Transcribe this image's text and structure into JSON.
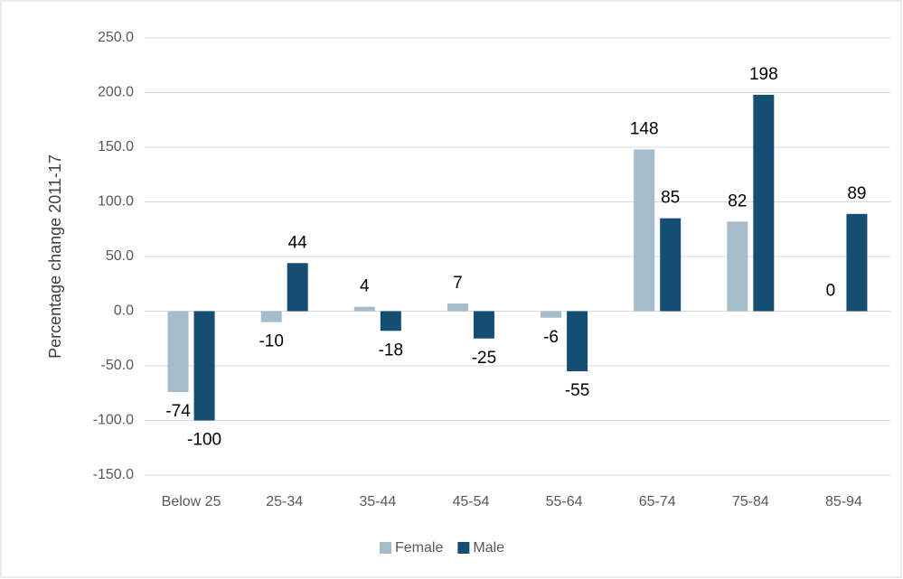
{
  "chart_data": {
    "type": "bar",
    "y_label": "Percentage change 2011-17",
    "categories": [
      "Below 25",
      "25-34",
      "35-44",
      "45-54",
      "55-64",
      "65-74",
      "75-84",
      "85-94"
    ],
    "series": [
      {
        "name": "Female",
        "color": "#a5bccb",
        "values": [
          -74,
          -10,
          4,
          7,
          -6,
          148,
          82,
          0
        ]
      },
      {
        "name": "Male",
        "color": "#154e72",
        "values": [
          -100,
          44,
          -18,
          -25,
          -55,
          85,
          198,
          89
        ]
      }
    ],
    "ylim": [
      -150,
      250
    ],
    "yticks": [
      {
        "value": -150,
        "label": "-150.0"
      },
      {
        "value": -100,
        "label": "-100.0"
      },
      {
        "value": -50,
        "label": "-50.0"
      },
      {
        "value": 0,
        "label": "0.0"
      },
      {
        "value": 50,
        "label": "50.0"
      },
      {
        "value": 100,
        "label": "100.0"
      },
      {
        "value": 150,
        "label": "150.0"
      },
      {
        "value": 200,
        "label": "200.0"
      },
      {
        "value": 250,
        "label": "250.0"
      }
    ],
    "grid": true,
    "legend": "bottom"
  }
}
